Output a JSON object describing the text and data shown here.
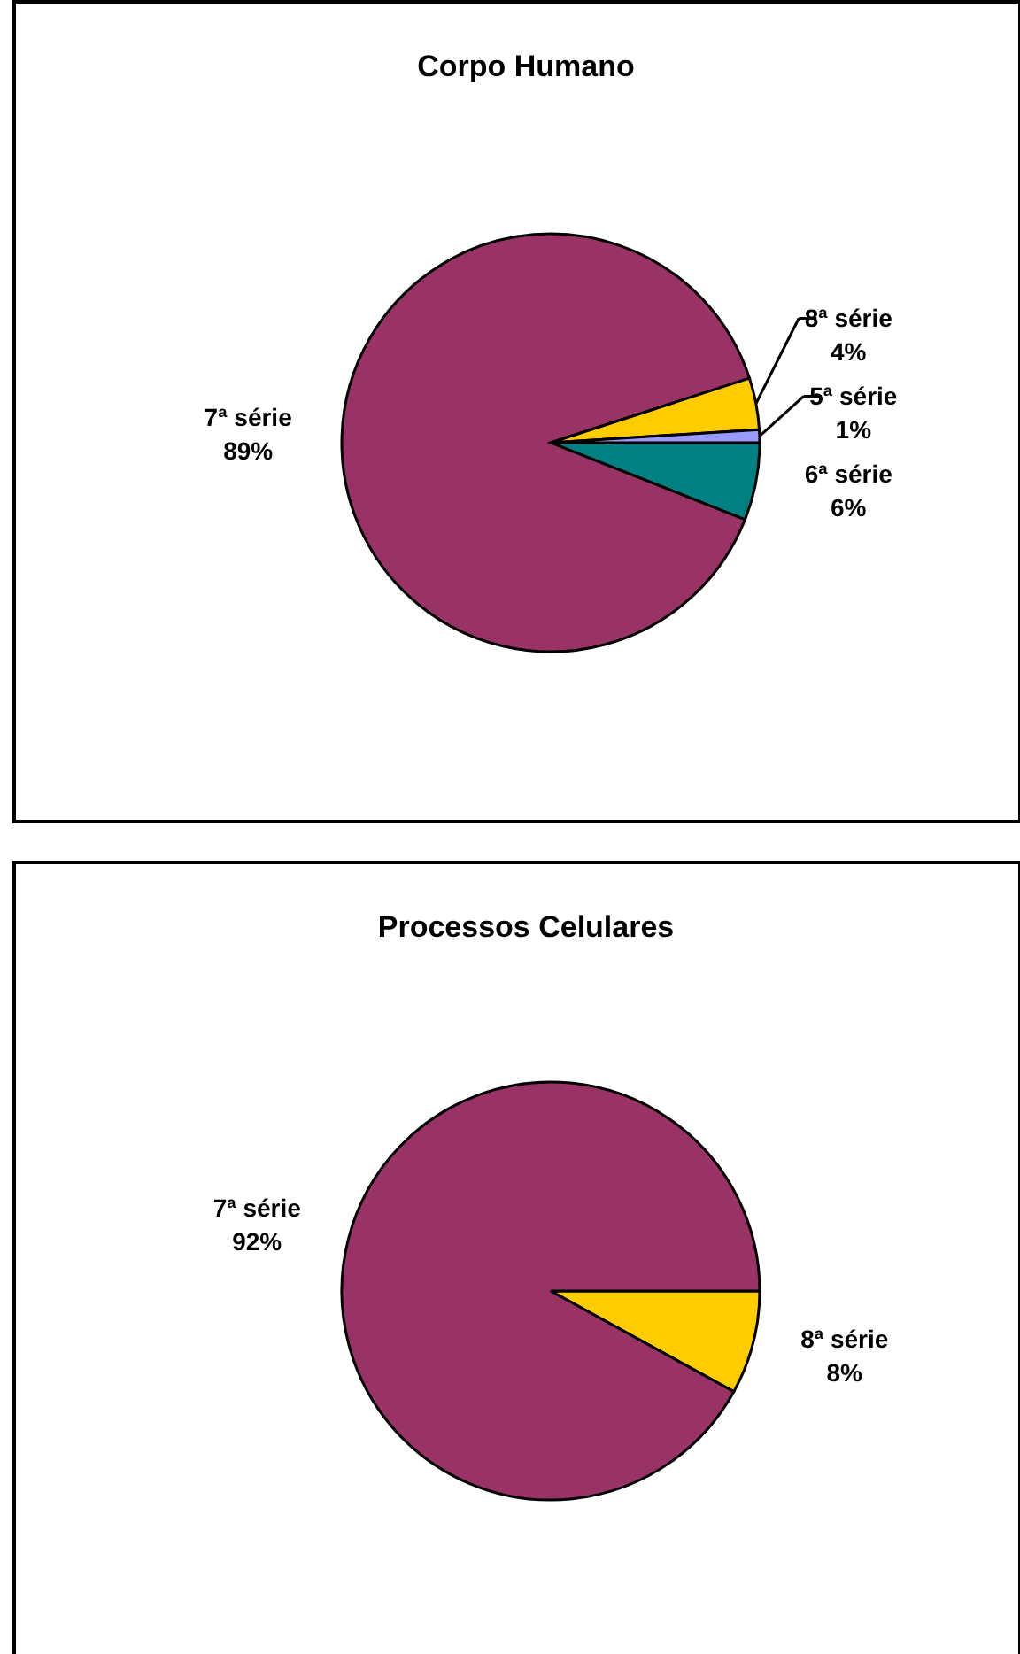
{
  "chart_data": [
    {
      "type": "pie",
      "title": "Corpo Humano",
      "categories": [
        "6ª série",
        "7ª série",
        "8ª série",
        "5ª série"
      ],
      "values": [
        6,
        89,
        4,
        1
      ],
      "colors": [
        "#008080",
        "#993366",
        "#ffcc00",
        "#9999ff"
      ],
      "value_labels": [
        "6%",
        "89%",
        "4%",
        "1%"
      ]
    },
    {
      "type": "pie",
      "title": "Processos Celulares",
      "categories": [
        "8ª série",
        "7ª série"
      ],
      "values": [
        8,
        92
      ],
      "colors": [
        "#ffcc00",
        "#993366"
      ],
      "value_labels": [
        "8%",
        "92%"
      ]
    }
  ]
}
